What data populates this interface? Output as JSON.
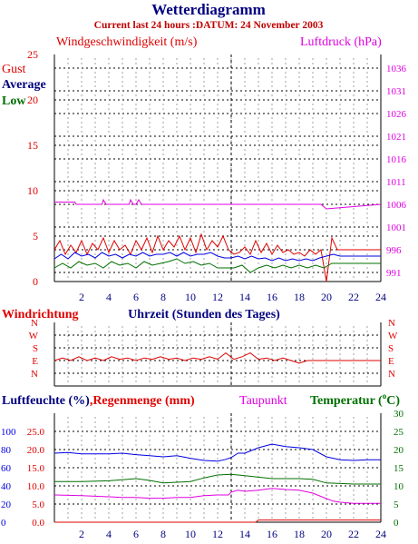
{
  "header": {
    "title": "Wetterdiagramm",
    "subtitle": "Current last 24 hours :DATUM: 24 November 2003"
  },
  "colors": {
    "navy": "#000080",
    "red": "#e00000",
    "magenta": "#e000e0",
    "blue": "#0000e0",
    "green": "#007000",
    "darkred": "#c00000"
  },
  "chart_data": [
    {
      "type": "line",
      "labels": {
        "left_title": "Windgeschwindigkeit (m/s)",
        "right_title": "Luftdruck (hPa)",
        "legend_gust": "Gust",
        "legend_average": "Average",
        "legend_low": "Low",
        "x_title": "Uhrzeit (Stunden des Tages)"
      },
      "xlim": [
        0,
        24
      ],
      "x_ticks": [
        "2",
        "4",
        "6",
        "8",
        "10",
        "12",
        "14",
        "16",
        "18",
        "20",
        "22",
        "24"
      ],
      "y_left_ticks": [
        "0",
        "5",
        "10",
        "15",
        "20",
        "25"
      ],
      "ylim_left": [
        0,
        25
      ],
      "y_right_ticks": [
        "991",
        "996",
        "1001",
        "1006",
        "1011",
        "1016",
        "1021",
        "1026",
        "1031",
        "1036"
      ],
      "ylim_right": [
        989,
        1039
      ],
      "marker_hour": 13,
      "series": [
        {
          "name": "Gust",
          "color": "#e00000",
          "axis": "left",
          "x": [
            0.0,
            0.4,
            0.8,
            1.2,
            1.6,
            2.0,
            2.4,
            2.8,
            3.2,
            3.6,
            4.0,
            4.4,
            4.8,
            5.2,
            5.6,
            6.0,
            6.4,
            6.8,
            7.2,
            7.6,
            8.0,
            8.4,
            8.8,
            9.2,
            9.6,
            10.0,
            10.4,
            10.8,
            11.2,
            11.6,
            12.0,
            12.4,
            12.8,
            13.2,
            13.6,
            14.0,
            14.4,
            14.8,
            15.2,
            15.6,
            16.0,
            16.4,
            16.8,
            17.2,
            17.6,
            18.0,
            18.4,
            18.8,
            19.2,
            19.6,
            20.0,
            20.4,
            20.8,
            21.5,
            22.5,
            24.0
          ],
          "values": [
            3.5,
            4.5,
            3.0,
            4.0,
            3.2,
            4.5,
            3.0,
            4.2,
            3.5,
            4.8,
            3.2,
            4.5,
            3.5,
            4.0,
            3.0,
            4.5,
            3.5,
            4.8,
            3.2,
            5.0,
            3.5,
            4.5,
            3.8,
            5.0,
            3.5,
            4.8,
            3.2,
            5.2,
            3.5,
            4.5,
            3.8,
            5.0,
            3.5,
            3.0,
            3.2,
            3.8,
            3.0,
            4.5,
            3.2,
            4.2,
            3.0,
            4.0,
            3.2,
            3.5,
            3.0,
            3.2,
            2.8,
            3.5,
            3.0,
            3.5,
            0.0,
            4.8,
            3.5,
            3.5,
            3.5,
            3.5
          ]
        },
        {
          "name": "Average",
          "color": "#0000e0",
          "axis": "left",
          "x": [
            0.0,
            0.5,
            1.0,
            1.5,
            2.0,
            2.5,
            3.0,
            3.5,
            4.0,
            4.5,
            5.0,
            5.5,
            6.0,
            6.5,
            7.0,
            7.5,
            8.0,
            8.5,
            9.0,
            9.5,
            10.0,
            10.5,
            11.0,
            11.5,
            12.0,
            12.5,
            13.0,
            13.5,
            14.0,
            14.5,
            15.0,
            15.5,
            16.0,
            16.5,
            17.0,
            17.5,
            18.0,
            18.5,
            19.0,
            19.5,
            20.0,
            20.5,
            21.0,
            22.0,
            23.0,
            24.0
          ],
          "values": [
            2.5,
            3.0,
            2.5,
            3.2,
            2.8,
            3.0,
            2.6,
            3.2,
            2.8,
            3.0,
            2.6,
            3.0,
            2.8,
            3.2,
            2.8,
            3.0,
            3.0,
            3.2,
            2.8,
            3.2,
            2.8,
            3.0,
            3.0,
            3.2,
            2.8,
            2.6,
            2.6,
            2.8,
            2.5,
            2.8,
            2.5,
            2.6,
            2.3,
            2.6,
            2.3,
            2.5,
            2.3,
            2.5,
            2.3,
            2.6,
            2.8,
            3.0,
            2.8,
            2.8,
            2.8,
            2.8
          ]
        },
        {
          "name": "Low",
          "color": "#007000",
          "axis": "left",
          "x": [
            0.0,
            0.6,
            1.2,
            1.8,
            2.4,
            3.0,
            3.6,
            4.2,
            4.8,
            5.4,
            6.0,
            6.6,
            7.2,
            7.8,
            8.4,
            9.0,
            9.6,
            10.2,
            10.8,
            11.4,
            12.0,
            12.6,
            13.2,
            13.8,
            14.4,
            15.0,
            15.6,
            16.2,
            16.8,
            17.4,
            18.0,
            18.6,
            19.2,
            19.8,
            20.4,
            21.0,
            22.0,
            23.0,
            24.0
          ],
          "values": [
            1.5,
            2.0,
            1.5,
            2.2,
            1.8,
            2.0,
            1.5,
            2.2,
            1.8,
            2.0,
            1.5,
            2.2,
            1.8,
            2.0,
            2.2,
            2.5,
            2.0,
            2.2,
            1.8,
            2.0,
            1.5,
            1.5,
            1.5,
            1.8,
            1.0,
            1.5,
            1.8,
            1.5,
            1.8,
            1.5,
            1.8,
            1.5,
            1.8,
            1.5,
            2.0,
            2.0,
            2.0,
            2.0,
            2.0
          ]
        },
        {
          "name": "Luftdruck",
          "color": "#e000e0",
          "axis": "right",
          "x": [
            0.0,
            1.5,
            1.6,
            3.5,
            3.6,
            3.8,
            5.5,
            5.6,
            5.8,
            6.0,
            6.2,
            6.4,
            7.0,
            13.0,
            14.0,
            19.0,
            19.6,
            20.0,
            24.0
          ],
          "values": [
            1006.5,
            1006.5,
            1006.0,
            1006.0,
            1007.0,
            1006.0,
            1006.0,
            1007.0,
            1006.0,
            1006.0,
            1007.0,
            1006.0,
            1006.0,
            1006.0,
            1006.0,
            1006.0,
            1006.0,
            1005.0,
            1006.0
          ]
        }
      ]
    },
    {
      "type": "line",
      "labels": {
        "title": "Windrichtung"
      },
      "xlim": [
        0,
        24
      ],
      "y_categories": [
        "N",
        "W",
        "S",
        "E",
        "N"
      ],
      "ylim": [
        0,
        4
      ],
      "marker_hour": 13,
      "series": [
        {
          "name": "Windrichtung",
          "color": "#e00000",
          "x": [
            0.0,
            0.6,
            1.2,
            1.8,
            2.4,
            3.0,
            3.6,
            4.2,
            4.8,
            5.4,
            6.0,
            6.6,
            7.2,
            7.8,
            8.4,
            9.0,
            9.6,
            10.2,
            10.8,
            11.4,
            12.0,
            12.6,
            13.2,
            13.8,
            14.4,
            15.0,
            15.6,
            16.2,
            16.8,
            17.4,
            18.0,
            18.6,
            19.2,
            19.8,
            20.4,
            21.0,
            22.0,
            23.0,
            24.0
          ],
          "values": [
            1.0,
            1.2,
            1.0,
            1.3,
            1.0,
            1.2,
            1.0,
            1.3,
            1.1,
            1.2,
            1.0,
            1.2,
            1.1,
            1.3,
            1.1,
            1.2,
            1.0,
            1.2,
            1.1,
            1.3,
            1.1,
            1.6,
            1.1,
            1.3,
            1.6,
            1.1,
            1.2,
            1.0,
            1.2,
            1.0,
            0.8,
            1.0,
            1.0,
            1.0,
            1.0,
            1.0,
            1.0,
            1.0,
            1.0
          ]
        }
      ]
    },
    {
      "type": "line",
      "labels": {
        "humidity_title": "Luftfeuchte (%)",
        "rain_title": ",Regenmenge (mm)",
        "dewpoint_title": "Taupunkt",
        "temp_title": "Temperatur (",
        "temp_unit": "C)"
      },
      "xlim": [
        0,
        24
      ],
      "x_ticks": [
        "2",
        "4",
        "6",
        "8",
        "10",
        "12",
        "14",
        "16",
        "18",
        "20",
        "22",
        "24"
      ],
      "y_humidity_ticks": [
        "0",
        "20",
        "40",
        "60",
        "80",
        "100"
      ],
      "ylim_humidity": [
        0,
        120
      ],
      "y_rain_ticks": [
        "0.0",
        "5.0",
        "10.0",
        "15.0",
        "20.0",
        "25.0"
      ],
      "ylim_rain": [
        0,
        30
      ],
      "y_temp_ticks": [
        "0",
        "5",
        "10",
        "15",
        "20",
        "25",
        "30"
      ],
      "ylim_temp": [
        0,
        30
      ],
      "marker_hour": 13,
      "series": [
        {
          "name": "Luftfeuchte",
          "color": "#0000e0",
          "axis": "temp",
          "x": [
            0.0,
            1.0,
            2.0,
            3.0,
            4.0,
            5.0,
            6.0,
            7.0,
            8.0,
            9.0,
            10.0,
            11.0,
            12.0,
            12.5,
            13.0,
            13.5,
            14.0,
            15.0,
            16.0,
            17.0,
            18.0,
            19.0,
            20.0,
            21.0,
            22.0,
            23.0,
            24.0
          ],
          "values": [
            19.0,
            19.2,
            18.8,
            18.8,
            18.8,
            19.0,
            18.6,
            18.3,
            18.0,
            18.3,
            17.6,
            17.0,
            16.8,
            17.2,
            17.8,
            19.0,
            19.0,
            20.5,
            21.5,
            20.8,
            20.5,
            20.0,
            18.0,
            17.2,
            17.0,
            17.2,
            17.2
          ]
        },
        {
          "name": "Temperatur",
          "color": "#007000",
          "axis": "temp",
          "x": [
            0.0,
            2.0,
            4.0,
            6.0,
            7.0,
            8.0,
            10.0,
            11.0,
            12.0,
            13.0,
            14.0,
            16.0,
            18.0,
            19.0,
            20.0,
            22.0,
            24.0
          ],
          "values": [
            11.2,
            11.2,
            11.4,
            12.0,
            11.5,
            10.8,
            11.2,
            12.2,
            13.0,
            13.2,
            12.8,
            12.0,
            12.0,
            11.8,
            10.8,
            10.5,
            10.5
          ]
        },
        {
          "name": "Taupunkt",
          "color": "#e000e0",
          "axis": "temp",
          "x": [
            0.0,
            2.0,
            4.0,
            5.0,
            6.0,
            7.0,
            8.0,
            9.0,
            10.0,
            11.0,
            12.0,
            12.8,
            13.0,
            13.5,
            14.0,
            15.0,
            16.0,
            17.0,
            18.0,
            19.0,
            20.0,
            20.5,
            21.0,
            22.0,
            23.0,
            24.0
          ],
          "values": [
            7.5,
            7.3,
            7.0,
            6.8,
            6.8,
            6.6,
            6.6,
            6.8,
            6.8,
            7.3,
            7.5,
            7.5,
            8.3,
            8.8,
            8.5,
            8.8,
            9.3,
            9.0,
            8.8,
            8.0,
            6.5,
            5.8,
            5.5,
            5.2,
            5.2,
            5.2
          ]
        },
        {
          "name": "Regenmenge",
          "color": "#e00000",
          "axis": "rain",
          "x": [
            0.0,
            14.8,
            15.0,
            24.0
          ],
          "values": [
            0.0,
            0.0,
            0.6,
            0.6
          ]
        }
      ]
    }
  ]
}
